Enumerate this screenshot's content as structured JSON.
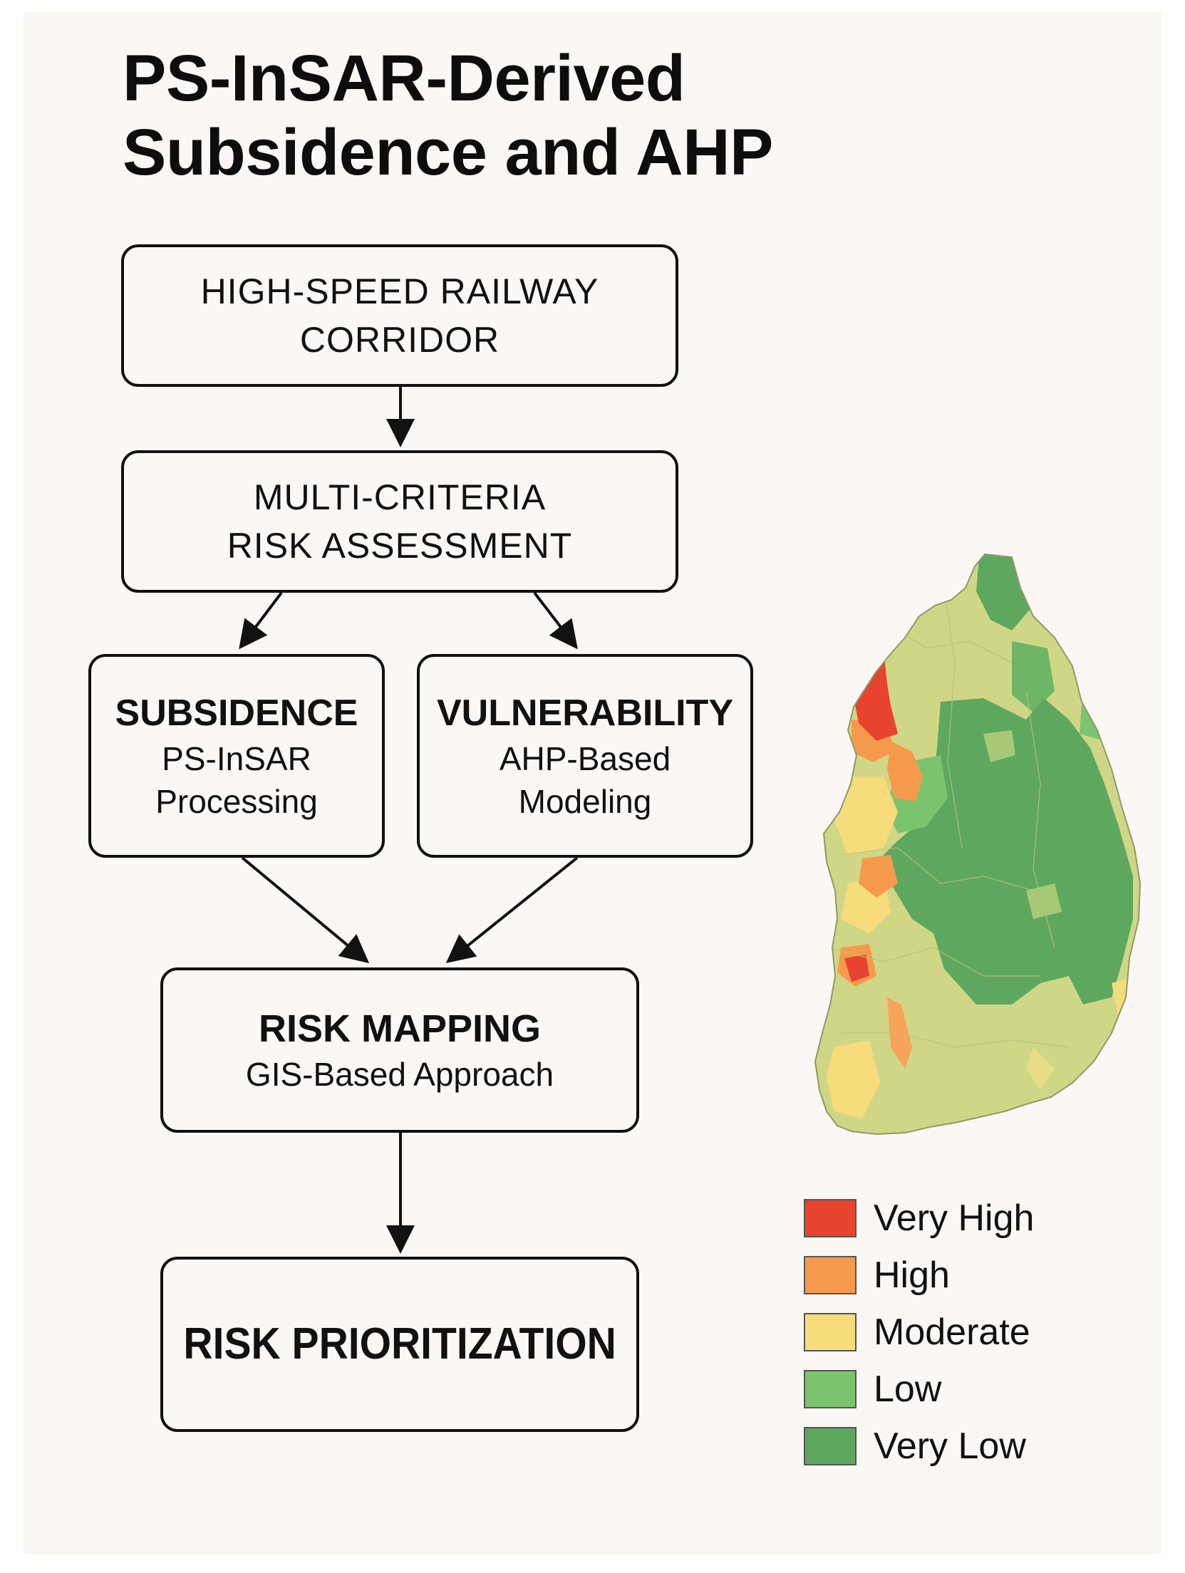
{
  "title": {
    "line1": "PS-InSAR-Derived",
    "line2": "Subsidence and AHP"
  },
  "flow": {
    "corridor": {
      "line1": "HIGH-SPEED RAILWAY",
      "line2": "CORRIDOR"
    },
    "assessment": {
      "line1": "MULTI-CRITERIA",
      "line2": "RISK ASSESSMENT"
    },
    "subsidence": {
      "heading": "SUBSIDENCE",
      "line1": "PS-InSAR",
      "line2": "Processing"
    },
    "vulnerability": {
      "heading": "VULNERABILITY",
      "line1": "AHP-Based",
      "line2": "Modeling"
    },
    "mapping": {
      "heading": "RISK MAPPING",
      "line1": "GIS-Based Approach"
    },
    "prioritization": {
      "heading": "RISK PRIORITIZATION"
    }
  },
  "legend": {
    "items": [
      {
        "label": "Very High",
        "color": "#e8432f"
      },
      {
        "label": "High",
        "color": "#f59a4c"
      },
      {
        "label": "Moderate",
        "color": "#f7dc7c"
      },
      {
        "label": "Low",
        "color": "#7cc36e"
      },
      {
        "label": "Very Low",
        "color": "#5da85e"
      }
    ]
  },
  "map_colors": {
    "base": "#cfd787",
    "border": "#b9c27a"
  }
}
